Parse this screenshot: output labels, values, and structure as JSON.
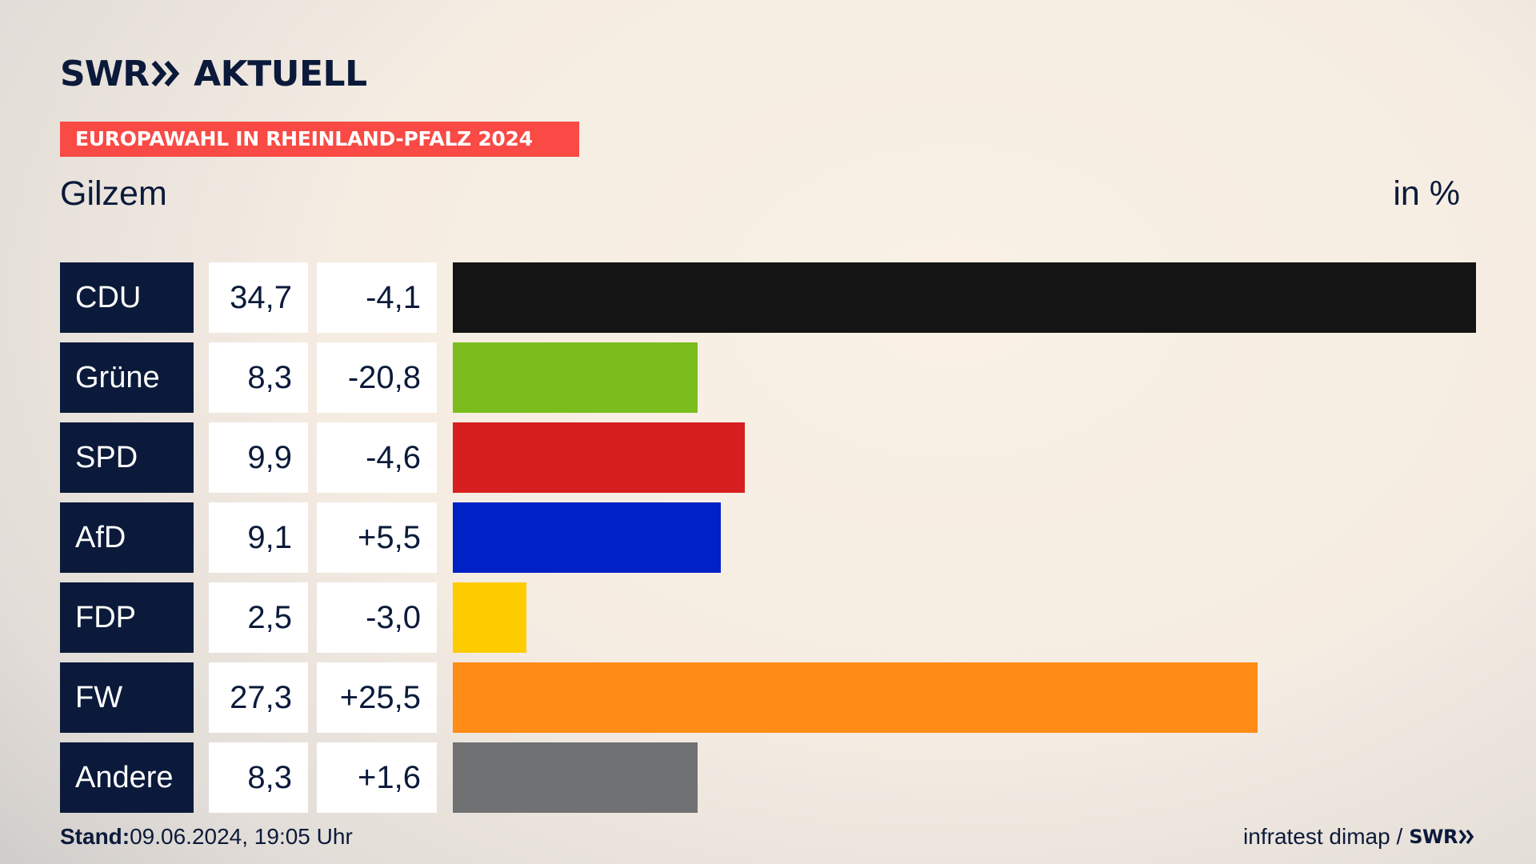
{
  "header": {
    "logo_text": "SWR",
    "logo_suffix": "AKTUELL",
    "banner": "EUROPAWAHL IN RHEINLAND-PFALZ 2024",
    "place": "Gilzem",
    "unit": "in %"
  },
  "colors": {
    "banner": "#f94a45",
    "label_bg": "#0b1a3a",
    "text": "#0b1a3a"
  },
  "chart_data": {
    "type": "bar",
    "orientation": "horizontal",
    "categories": [
      "CDU",
      "Grüne",
      "SPD",
      "AfD",
      "FDP",
      "FW",
      "Andere"
    ],
    "values": [
      34.7,
      8.3,
      9.9,
      9.1,
      2.5,
      27.3,
      8.3
    ],
    "value_labels": [
      "34,7",
      "8,3",
      "9,9",
      "9,1",
      "2,5",
      "27,3",
      "8,3"
    ],
    "changes": [
      -4.1,
      -20.8,
      -4.6,
      5.5,
      -3.0,
      25.5,
      1.6
    ],
    "change_labels": [
      "-4,1",
      "-20,8",
      "-4,6",
      "+5,5",
      "-3,0",
      "+25,5",
      "+1,6"
    ],
    "colors": [
      "#141414",
      "#7bbd1d",
      "#d71f1f",
      "#0021c6",
      "#ffcc00",
      "#ff8c16",
      "#707173"
    ],
    "xlim": [
      0,
      34.7
    ],
    "grid": false
  },
  "rows": [
    {
      "party": "CDU",
      "value": "34,7",
      "change": "-4,1"
    },
    {
      "party": "Grüne",
      "value": "8,3",
      "change": "-20,8"
    },
    {
      "party": "SPD",
      "value": "9,9",
      "change": "-4,6"
    },
    {
      "party": "AfD",
      "value": "9,1",
      "change": "+5,5"
    },
    {
      "party": "FDP",
      "value": "2,5",
      "change": "-3,0"
    },
    {
      "party": "FW",
      "value": "27,3",
      "change": "+25,5"
    },
    {
      "party": "Andere",
      "value": "8,3",
      "change": "+1,6"
    }
  ],
  "footer": {
    "stand_label": "Stand:",
    "stand_value": "09.06.2024, 19:05 Uhr",
    "source": "infratest dimap /",
    "source_logo": "SWR"
  }
}
